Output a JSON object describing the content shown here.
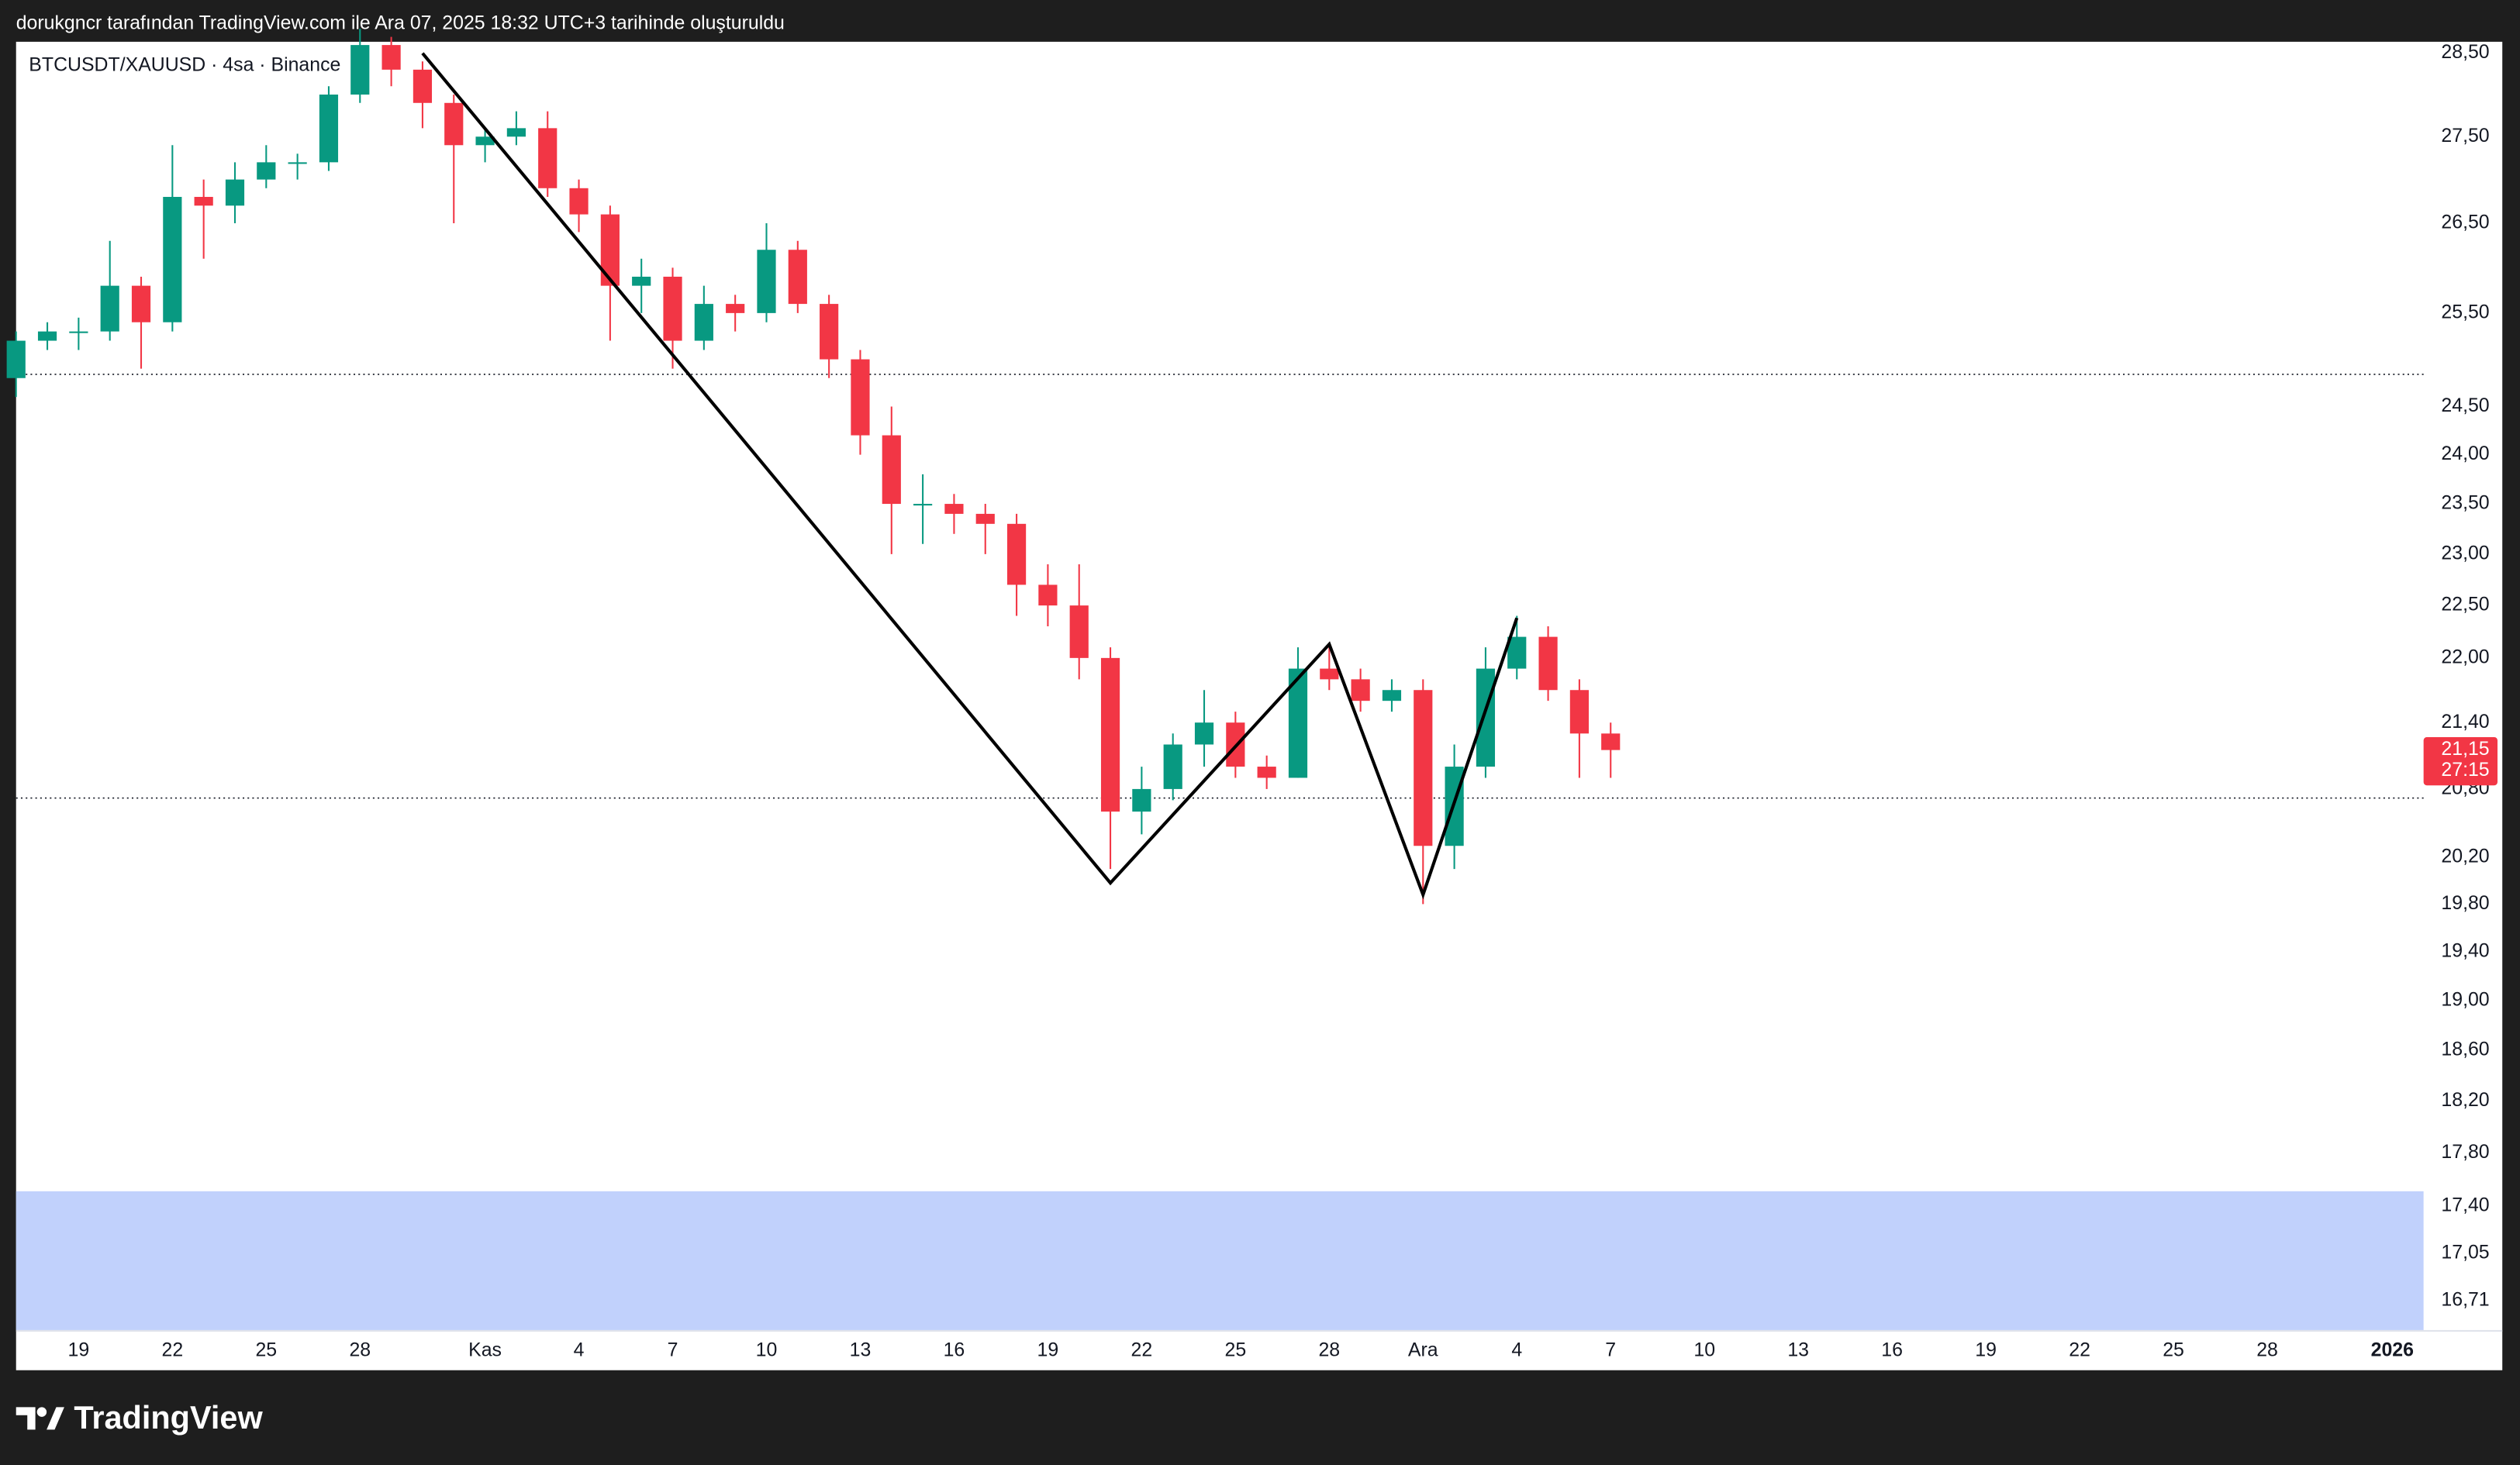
{
  "chart_data": {
    "type": "candlestick",
    "header": "dorukgncr tarafından TradingView.com ile Ara 07, 2025 18:32 UTC+3 tarihinde oluşturuldu",
    "title": "BTCUSDT/XAUUSD · 4sa · Binance",
    "brand": "TradingView",
    "log_scale": true,
    "grid": false,
    "up_color": "#089981",
    "down_color": "#f23645",
    "xlim": [
      "2025-10-17",
      "2026-01-02"
    ],
    "ylim": [
      16.5,
      28.64
    ],
    "xticks": [
      {
        "value": "2025-10-19",
        "label": "19"
      },
      {
        "value": "2025-10-22",
        "label": "22"
      },
      {
        "value": "2025-10-25",
        "label": "25"
      },
      {
        "value": "2025-10-28",
        "label": "28"
      },
      {
        "value": "2025-11-01",
        "label": "Kas"
      },
      {
        "value": "2025-11-04",
        "label": "4"
      },
      {
        "value": "2025-11-07",
        "label": "7"
      },
      {
        "value": "2025-11-10",
        "label": "10"
      },
      {
        "value": "2025-11-13",
        "label": "13"
      },
      {
        "value": "2025-11-16",
        "label": "16"
      },
      {
        "value": "2025-11-19",
        "label": "19"
      },
      {
        "value": "2025-11-22",
        "label": "22"
      },
      {
        "value": "2025-11-25",
        "label": "25"
      },
      {
        "value": "2025-11-28",
        "label": "28"
      },
      {
        "value": "2025-12-01",
        "label": "Ara"
      },
      {
        "value": "2025-12-04",
        "label": "4"
      },
      {
        "value": "2025-12-07",
        "label": "7"
      },
      {
        "value": "2025-12-10",
        "label": "10"
      },
      {
        "value": "2025-12-13",
        "label": "13"
      },
      {
        "value": "2025-12-16",
        "label": "16"
      },
      {
        "value": "2025-12-19",
        "label": "19"
      },
      {
        "value": "2025-12-22",
        "label": "22"
      },
      {
        "value": "2025-12-25",
        "label": "25"
      },
      {
        "value": "2025-12-28",
        "label": "28"
      },
      {
        "value": "2026-01-01",
        "label": "2026"
      }
    ],
    "yticks": [
      {
        "value": 28.5,
        "label": "28,50"
      },
      {
        "value": 27.5,
        "label": "27,50"
      },
      {
        "value": 26.5,
        "label": "26,50"
      },
      {
        "value": 25.5,
        "label": "25,50"
      },
      {
        "value": 24.5,
        "label": "24,50"
      },
      {
        "value": 24,
        "label": "24,00"
      },
      {
        "value": 23.5,
        "label": "23,50"
      },
      {
        "value": 23,
        "label": "23,00"
      },
      {
        "value": 22.5,
        "label": "22,50"
      },
      {
        "value": 22,
        "label": "22,00"
      },
      {
        "value": 21.4,
        "label": "21,40"
      },
      {
        "value": 20.8,
        "label": "20,80"
      },
      {
        "value": 20.2,
        "label": "20,20"
      },
      {
        "value": 19.8,
        "label": "19,80"
      },
      {
        "value": 19.4,
        "label": "19,40"
      },
      {
        "value": 19,
        "label": "19,00"
      },
      {
        "value": 18.6,
        "label": "18,60"
      },
      {
        "value": 18.2,
        "label": "18,20"
      },
      {
        "value": 17.8,
        "label": "17,80"
      },
      {
        "value": 17.4,
        "label": "17,40"
      },
      {
        "value": 17.05,
        "label": "17,05"
      },
      {
        "value": 16.71,
        "label": "16,71"
      }
    ],
    "x": [
      "2025-10-17",
      "2025-10-18",
      "2025-10-19",
      "2025-10-20",
      "2025-10-21",
      "2025-10-22",
      "2025-10-23",
      "2025-10-24",
      "2025-10-25",
      "2025-10-26",
      "2025-10-27",
      "2025-10-28",
      "2025-10-29",
      "2025-10-30",
      "2025-10-31",
      "2025-11-01",
      "2025-11-02",
      "2025-11-03",
      "2025-11-04",
      "2025-11-05",
      "2025-11-06",
      "2025-11-07",
      "2025-11-08",
      "2025-11-09",
      "2025-11-10",
      "2025-11-11",
      "2025-11-12",
      "2025-11-13",
      "2025-11-14",
      "2025-11-15",
      "2025-11-16",
      "2025-11-17",
      "2025-11-18",
      "2025-11-19",
      "2025-11-20",
      "2025-11-21",
      "2025-11-22",
      "2025-11-23",
      "2025-11-24",
      "2025-11-25",
      "2025-11-26",
      "2025-11-27",
      "2025-11-28",
      "2025-11-29",
      "2025-11-30",
      "2025-12-01",
      "2025-12-02",
      "2025-12-03",
      "2025-12-04",
      "2025-12-05",
      "2025-12-06",
      "2025-12-07"
    ],
    "open": [
      24.8,
      25.2,
      25.3,
      25.3,
      25.8,
      25.4,
      26.8,
      26.7,
      27.0,
      27.2,
      27.2,
      28.0,
      28.6,
      28.3,
      27.9,
      27.4,
      27.5,
      27.6,
      26.9,
      26.6,
      25.8,
      25.9,
      25.2,
      25.6,
      25.5,
      26.2,
      25.6,
      25.0,
      24.2,
      23.5,
      23.5,
      23.4,
      23.3,
      22.7,
      22.5,
      22.0,
      20.6,
      20.8,
      21.2,
      21.4,
      21.0,
      20.9,
      21.9,
      21.8,
      21.6,
      21.7,
      20.3,
      21.0,
      21.9,
      22.2,
      21.7,
      21.3
    ],
    "high": [
      25.3,
      25.4,
      25.45,
      26.3,
      25.9,
      27.4,
      27.0,
      27.2,
      27.4,
      27.3,
      28.1,
      28.8,
      28.7,
      28.4,
      28.0,
      27.6,
      27.8,
      27.8,
      27.0,
      26.7,
      26.1,
      26.0,
      25.8,
      25.7,
      26.5,
      26.3,
      25.7,
      25.1,
      24.5,
      23.8,
      23.6,
      23.5,
      23.4,
      22.9,
      22.9,
      22.1,
      21.0,
      21.3,
      21.7,
      21.5,
      21.1,
      22.1,
      22.1,
      21.9,
      21.8,
      21.8,
      21.2,
      22.1,
      22.4,
      22.3,
      21.8,
      21.4
    ],
    "low": [
      24.6,
      25.1,
      25.1,
      25.2,
      24.9,
      25.3,
      26.1,
      26.5,
      26.9,
      27.0,
      27.1,
      27.9,
      28.1,
      27.6,
      26.5,
      27.2,
      27.4,
      26.8,
      26.4,
      25.2,
      25.5,
      24.9,
      25.1,
      25.3,
      25.4,
      25.5,
      24.8,
      24.0,
      23.0,
      23.1,
      23.2,
      23.0,
      22.4,
      22.3,
      21.8,
      20.1,
      20.4,
      20.7,
      21.0,
      20.9,
      20.8,
      20.9,
      21.7,
      21.5,
      21.5,
      19.8,
      20.1,
      20.9,
      21.8,
      21.6,
      20.9,
      20.9
    ],
    "close": [
      25.2,
      25.3,
      25.3,
      25.8,
      25.4,
      26.8,
      26.7,
      27.0,
      27.2,
      27.2,
      28.0,
      28.6,
      28.3,
      27.9,
      27.4,
      27.5,
      27.6,
      26.9,
      26.6,
      25.8,
      25.9,
      25.2,
      25.6,
      25.5,
      26.2,
      25.6,
      25.0,
      24.2,
      23.5,
      23.5,
      23.4,
      23.3,
      22.7,
      22.5,
      22.0,
      20.6,
      20.8,
      21.2,
      21.4,
      21.0,
      20.9,
      21.9,
      21.8,
      21.6,
      21.7,
      20.3,
      21.0,
      21.9,
      22.2,
      21.7,
      21.3,
      21.15
    ],
    "horizontal_lines": [
      24.84,
      20.72
    ],
    "pattern_line": {
      "x": [
        "2025-10-30",
        "2025-11-21",
        "2025-11-28",
        "2025-12-01",
        "2025-12-04"
      ],
      "y": [
        28.5,
        19.98,
        22.13,
        19.88,
        22.38
      ]
    },
    "zone": {
      "from": 17.51,
      "to": 16.5,
      "color": "#c1d1fc"
    },
    "last_price": {
      "value": 21.15,
      "label": "21,15"
    },
    "countdown": "27:15"
  }
}
